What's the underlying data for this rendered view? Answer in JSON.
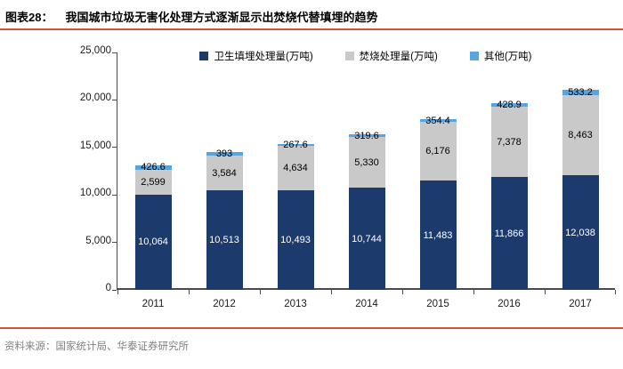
{
  "header": {
    "figure_label": "图表28：",
    "title": "我国城市垃圾无害化处理方式逐渐显示出焚烧代替填埋的趋势"
  },
  "footer": {
    "source": "资料来源：国家统计局、华泰证券研究所"
  },
  "colors": {
    "landfill": "#1c3b6c",
    "incineration": "#c9c9c9",
    "other": "#57a4df",
    "rule_line": "#d6503c",
    "axis": "#4a4a4a",
    "source_text": "#808080"
  },
  "chart_data": {
    "type": "bar",
    "stacked": true,
    "title": "",
    "xlabel": "",
    "ylabel": "",
    "grid": false,
    "legend_position": "top",
    "categories": [
      "2011",
      "2012",
      "2013",
      "2014",
      "2015",
      "2016",
      "2017"
    ],
    "series": [
      {
        "name": "卫生填埋处理量(万吨)",
        "color_key": "landfill",
        "values": [
          10064,
          10513,
          10493,
          10744,
          11483,
          11866,
          12038
        ],
        "labels": [
          "10,064",
          "10,513",
          "10,493",
          "10,744",
          "11,483",
          "11,866",
          "12,038"
        ],
        "label_color": "#ffffff"
      },
      {
        "name": "焚烧处理量(万吨)",
        "color_key": "incineration",
        "values": [
          2599,
          3584,
          4634,
          5330,
          6176,
          7378,
          8463
        ],
        "labels": [
          "2,599",
          "3,584",
          "4,634",
          "5,330",
          "6,176",
          "7,378",
          "8,463"
        ],
        "label_color": "#000000"
      },
      {
        "name": "其他(万吨)",
        "color_key": "other",
        "values": [
          426.6,
          393,
          267.6,
          319.6,
          354.4,
          428.9,
          533.2
        ],
        "labels": [
          "426.6",
          "393",
          "267.6",
          "319.6",
          "354.4",
          "428.9",
          "533.2"
        ],
        "label_color": "#000000"
      }
    ],
    "y_axis": {
      "min": 0,
      "max": 25000,
      "step": 5000,
      "tick_labels": [
        "0",
        "5,000",
        "10,000",
        "15,000",
        "20,000",
        "25,000"
      ]
    }
  }
}
